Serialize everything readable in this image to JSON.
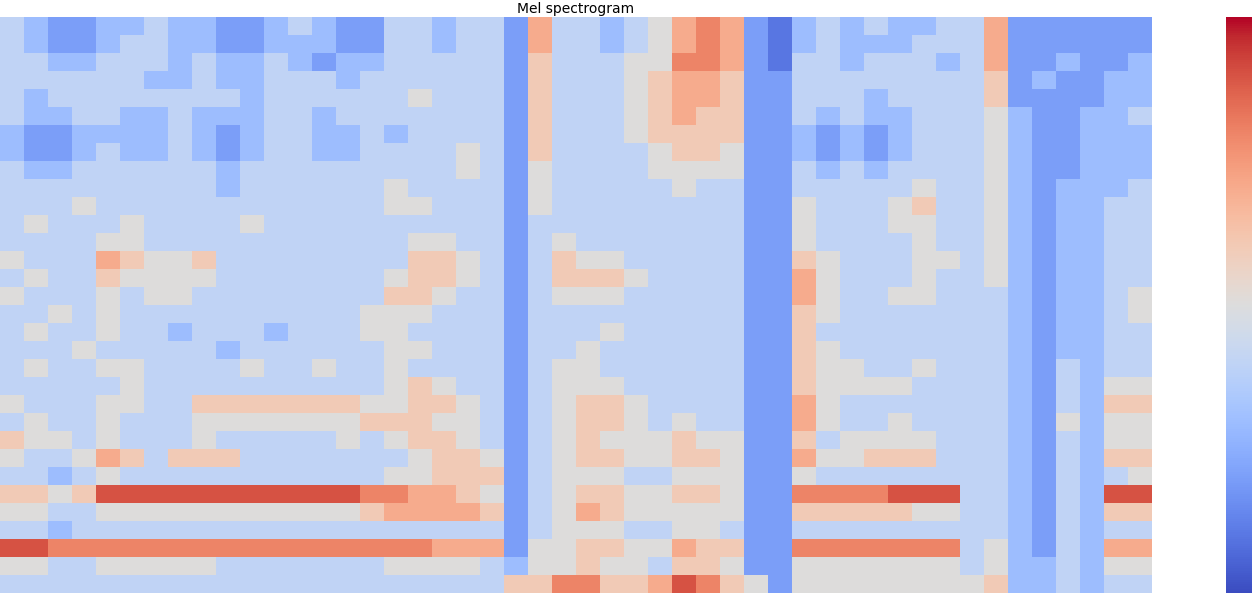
{
  "chart_data": {
    "type": "heatmap",
    "title": "Mel spectrogram",
    "color": "coolwarm",
    "tick_labels": false,
    "colorbar_range": [
      0,
      10
    ],
    "colorbar_ticks": [],
    "cells": [
      [
        4,
        3,
        2,
        2,
        3,
        3,
        4,
        3,
        3,
        2,
        2,
        3,
        4,
        3,
        2,
        2,
        4,
        4,
        3,
        4,
        4,
        2,
        7,
        4,
        4,
        3,
        4,
        5,
        7,
        8,
        7,
        2,
        1,
        3,
        4,
        3,
        4,
        3,
        3,
        4,
        4,
        7,
        2,
        2,
        2,
        2,
        2,
        2
      ],
      [
        4,
        3,
        2,
        2,
        3,
        4,
        4,
        3,
        3,
        2,
        2,
        3,
        3,
        3,
        2,
        2,
        4,
        4,
        3,
        4,
        4,
        2,
        7,
        4,
        4,
        3,
        4,
        5,
        7,
        8,
        7,
        2,
        1,
        3,
        4,
        3,
        3,
        3,
        4,
        4,
        4,
        7,
        2,
        2,
        2,
        2,
        2,
        2
      ],
      [
        4,
        4,
        3,
        3,
        4,
        4,
        4,
        3,
        4,
        3,
        3,
        4,
        3,
        2,
        3,
        3,
        4,
        4,
        4,
        4,
        4,
        2,
        6,
        4,
        4,
        4,
        5,
        5,
        8,
        8,
        7,
        2,
        1,
        4,
        4,
        3,
        4,
        4,
        4,
        3,
        4,
        7,
        2,
        2,
        3,
        2,
        2,
        3
      ],
      [
        4,
        4,
        4,
        4,
        4,
        4,
        3,
        3,
        4,
        3,
        3,
        4,
        4,
        4,
        3,
        4,
        4,
        4,
        4,
        4,
        4,
        2,
        6,
        4,
        4,
        4,
        5,
        6,
        7,
        7,
        6,
        2,
        2,
        4,
        4,
        4,
        4,
        4,
        4,
        4,
        4,
        6,
        2,
        3,
        2,
        2,
        3,
        3
      ],
      [
        4,
        3,
        4,
        4,
        4,
        4,
        4,
        4,
        4,
        4,
        3,
        4,
        4,
        4,
        4,
        4,
        4,
        5,
        4,
        4,
        4,
        2,
        6,
        4,
        4,
        4,
        5,
        6,
        7,
        7,
        6,
        2,
        2,
        4,
        4,
        4,
        3,
        4,
        4,
        4,
        4,
        6,
        2,
        2,
        2,
        2,
        3,
        3
      ],
      [
        4,
        3,
        3,
        4,
        4,
        3,
        3,
        4,
        3,
        3,
        3,
        4,
        4,
        3,
        4,
        4,
        4,
        4,
        4,
        4,
        4,
        2,
        6,
        4,
        4,
        4,
        5,
        6,
        7,
        6,
        6,
        2,
        2,
        4,
        3,
        4,
        3,
        3,
        4,
        4,
        4,
        5,
        3,
        2,
        2,
        3,
        3,
        4
      ],
      [
        3,
        2,
        2,
        3,
        3,
        3,
        3,
        4,
        3,
        2,
        3,
        4,
        4,
        3,
        3,
        4,
        3,
        4,
        4,
        4,
        4,
        2,
        6,
        4,
        4,
        4,
        5,
        6,
        6,
        6,
        6,
        2,
        2,
        3,
        2,
        3,
        2,
        3,
        4,
        4,
        4,
        5,
        3,
        2,
        2,
        3,
        3,
        3
      ],
      [
        3,
        2,
        2,
        3,
        4,
        3,
        3,
        4,
        3,
        2,
        3,
        4,
        4,
        3,
        3,
        4,
        4,
        4,
        4,
        5,
        4,
        2,
        6,
        4,
        4,
        4,
        4,
        5,
        6,
        6,
        5,
        2,
        2,
        3,
        2,
        3,
        2,
        3,
        4,
        4,
        4,
        5,
        3,
        2,
        2,
        3,
        3,
        3
      ],
      [
        4,
        3,
        3,
        4,
        4,
        4,
        4,
        4,
        4,
        3,
        4,
        4,
        4,
        4,
        4,
        4,
        4,
        4,
        4,
        5,
        4,
        2,
        5,
        4,
        4,
        4,
        4,
        5,
        5,
        5,
        5,
        2,
        2,
        4,
        3,
        4,
        3,
        4,
        4,
        4,
        4,
        5,
        3,
        2,
        2,
        3,
        3,
        3
      ],
      [
        4,
        4,
        4,
        4,
        4,
        4,
        4,
        4,
        4,
        3,
        4,
        4,
        4,
        4,
        4,
        4,
        5,
        4,
        4,
        4,
        4,
        2,
        5,
        4,
        4,
        4,
        4,
        4,
        5,
        4,
        4,
        2,
        2,
        4,
        4,
        4,
        4,
        4,
        5,
        4,
        4,
        5,
        3,
        2,
        3,
        3,
        3,
        4
      ],
      [
        4,
        4,
        4,
        5,
        4,
        4,
        4,
        4,
        4,
        4,
        4,
        4,
        4,
        4,
        4,
        4,
        5,
        5,
        4,
        4,
        4,
        2,
        5,
        4,
        4,
        4,
        4,
        4,
        4,
        4,
        4,
        2,
        2,
        5,
        4,
        4,
        4,
        5,
        6,
        4,
        4,
        5,
        3,
        2,
        3,
        3,
        4,
        4
      ],
      [
        4,
        5,
        4,
        4,
        4,
        5,
        4,
        4,
        4,
        4,
        5,
        4,
        4,
        4,
        4,
        4,
        4,
        4,
        4,
        4,
        4,
        2,
        4,
        4,
        4,
        4,
        4,
        4,
        4,
        4,
        4,
        2,
        2,
        5,
        4,
        4,
        4,
        5,
        5,
        4,
        4,
        5,
        3,
        2,
        3,
        3,
        4,
        4
      ],
      [
        4,
        4,
        4,
        4,
        5,
        5,
        4,
        4,
        4,
        4,
        4,
        4,
        4,
        4,
        4,
        4,
        4,
        5,
        5,
        4,
        4,
        2,
        4,
        5,
        4,
        4,
        4,
        4,
        4,
        4,
        4,
        2,
        2,
        5,
        4,
        4,
        4,
        4,
        5,
        4,
        4,
        5,
        3,
        2,
        3,
        3,
        4,
        4
      ],
      [
        5,
        4,
        4,
        4,
        7,
        6,
        5,
        5,
        6,
        4,
        4,
        4,
        4,
        4,
        4,
        4,
        4,
        6,
        6,
        5,
        4,
        2,
        4,
        6,
        5,
        5,
        4,
        4,
        4,
        4,
        4,
        2,
        2,
        6,
        5,
        4,
        4,
        4,
        5,
        5,
        4,
        5,
        3,
        2,
        3,
        3,
        4,
        4
      ],
      [
        4,
        5,
        4,
        4,
        6,
        5,
        5,
        5,
        5,
        4,
        4,
        4,
        4,
        4,
        4,
        4,
        5,
        6,
        6,
        5,
        4,
        2,
        4,
        6,
        6,
        6,
        5,
        4,
        4,
        4,
        4,
        2,
        2,
        7,
        5,
        4,
        4,
        4,
        5,
        4,
        4,
        5,
        3,
        2,
        3,
        3,
        4,
        4
      ],
      [
        5,
        4,
        4,
        4,
        5,
        4,
        5,
        5,
        4,
        4,
        4,
        4,
        4,
        4,
        4,
        4,
        6,
        6,
        5,
        4,
        4,
        2,
        4,
        5,
        5,
        5,
        4,
        4,
        4,
        4,
        4,
        2,
        2,
        7,
        5,
        4,
        4,
        5,
        5,
        4,
        4,
        4,
        3,
        2,
        3,
        3,
        4,
        5
      ],
      [
        4,
        4,
        5,
        4,
        5,
        4,
        4,
        4,
        4,
        4,
        4,
        4,
        4,
        4,
        4,
        5,
        5,
        5,
        4,
        4,
        4,
        2,
        4,
        4,
        4,
        4,
        4,
        4,
        4,
        4,
        4,
        2,
        2,
        6,
        5,
        4,
        4,
        4,
        4,
        4,
        4,
        4,
        3,
        2,
        3,
        3,
        4,
        5
      ],
      [
        4,
        5,
        4,
        4,
        5,
        4,
        4,
        3,
        4,
        4,
        4,
        3,
        4,
        4,
        4,
        5,
        5,
        4,
        4,
        4,
        4,
        2,
        4,
        4,
        4,
        5,
        4,
        4,
        4,
        4,
        4,
        2,
        2,
        6,
        4,
        4,
        4,
        4,
        4,
        4,
        4,
        4,
        3,
        2,
        3,
        3,
        4,
        4
      ],
      [
        4,
        4,
        4,
        5,
        4,
        4,
        4,
        4,
        4,
        3,
        4,
        4,
        4,
        4,
        4,
        4,
        5,
        5,
        4,
        4,
        4,
        2,
        4,
        4,
        5,
        4,
        4,
        4,
        4,
        4,
        4,
        2,
        2,
        6,
        5,
        4,
        4,
        4,
        4,
        4,
        4,
        4,
        3,
        2,
        3,
        3,
        4,
        4
      ],
      [
        4,
        5,
        4,
        4,
        5,
        5,
        4,
        4,
        4,
        4,
        5,
        4,
        4,
        5,
        4,
        4,
        5,
        4,
        4,
        4,
        4,
        2,
        4,
        5,
        5,
        4,
        4,
        4,
        4,
        4,
        4,
        2,
        2,
        6,
        5,
        5,
        4,
        4,
        5,
        4,
        4,
        4,
        3,
        2,
        4,
        3,
        4,
        4
      ],
      [
        4,
        4,
        4,
        4,
        4,
        5,
        4,
        4,
        4,
        4,
        4,
        4,
        4,
        4,
        4,
        4,
        5,
        6,
        5,
        4,
        4,
        2,
        4,
        5,
        5,
        5,
        4,
        4,
        4,
        4,
        4,
        2,
        2,
        6,
        5,
        5,
        5,
        5,
        4,
        4,
        4,
        4,
        3,
        2,
        4,
        3,
        5,
        5
      ],
      [
        5,
        4,
        4,
        4,
        5,
        5,
        4,
        4,
        6,
        6,
        6,
        6,
        6,
        6,
        6,
        5,
        5,
        6,
        6,
        5,
        4,
        2,
        4,
        5,
        6,
        6,
        5,
        4,
        4,
        4,
        4,
        2,
        2,
        7,
        5,
        4,
        4,
        4,
        4,
        4,
        4,
        4,
        3,
        2,
        4,
        3,
        6,
        6
      ],
      [
        4,
        5,
        4,
        4,
        5,
        4,
        4,
        4,
        5,
        5,
        5,
        5,
        5,
        5,
        5,
        6,
        6,
        6,
        5,
        5,
        4,
        2,
        4,
        5,
        6,
        6,
        5,
        4,
        5,
        4,
        4,
        2,
        2,
        7,
        5,
        4,
        4,
        5,
        4,
        4,
        4,
        4,
        3,
        2,
        5,
        3,
        5,
        5
      ],
      [
        6,
        5,
        5,
        4,
        5,
        4,
        4,
        4,
        5,
        4,
        4,
        4,
        4,
        4,
        5,
        4,
        5,
        6,
        6,
        5,
        4,
        2,
        4,
        5,
        6,
        5,
        5,
        5,
        6,
        5,
        5,
        2,
        2,
        6,
        4,
        5,
        5,
        5,
        5,
        4,
        4,
        4,
        3,
        2,
        4,
        3,
        5,
        5
      ],
      [
        5,
        4,
        4,
        5,
        7,
        6,
        4,
        6,
        6,
        6,
        4,
        4,
        4,
        4,
        4,
        4,
        4,
        5,
        6,
        6,
        5,
        2,
        4,
        5,
        6,
        6,
        5,
        5,
        6,
        6,
        5,
        2,
        2,
        7,
        5,
        5,
        6,
        6,
        6,
        4,
        4,
        4,
        3,
        2,
        4,
        3,
        6,
        6
      ],
      [
        4,
        4,
        3,
        4,
        5,
        4,
        4,
        4,
        4,
        4,
        4,
        4,
        4,
        4,
        4,
        4,
        5,
        5,
        6,
        6,
        6,
        2,
        4,
        5,
        5,
        5,
        4,
        4,
        5,
        5,
        5,
        2,
        2,
        5,
        4,
        4,
        4,
        4,
        4,
        4,
        4,
        4,
        3,
        2,
        4,
        3,
        4,
        5
      ],
      [
        6,
        6,
        5,
        6,
        9,
        9,
        9,
        9,
        9,
        9,
        9,
        9,
        9,
        9,
        9,
        8,
        8,
        7,
        7,
        6,
        5,
        2,
        4,
        5,
        6,
        6,
        5,
        5,
        6,
        6,
        5,
        2,
        2,
        8,
        8,
        8,
        8,
        9,
        9,
        9,
        4,
        4,
        3,
        2,
        4,
        3,
        9,
        9
      ],
      [
        5,
        5,
        4,
        4,
        5,
        5,
        5,
        5,
        5,
        5,
        5,
        5,
        5,
        5,
        5,
        6,
        7,
        7,
        7,
        7,
        6,
        2,
        4,
        5,
        7,
        6,
        5,
        5,
        5,
        5,
        5,
        2,
        2,
        6,
        6,
        6,
        6,
        6,
        5,
        5,
        4,
        4,
        3,
        2,
        4,
        3,
        6,
        6
      ],
      [
        4,
        4,
        3,
        4,
        4,
        4,
        4,
        4,
        4,
        4,
        4,
        4,
        4,
        4,
        4,
        4,
        4,
        4,
        4,
        4,
        4,
        2,
        4,
        5,
        5,
        5,
        4,
        4,
        5,
        5,
        4,
        2,
        2,
        4,
        4,
        4,
        4,
        4,
        4,
        4,
        4,
        4,
        3,
        2,
        4,
        3,
        4,
        4
      ],
      [
        9,
        9,
        8,
        8,
        8,
        8,
        8,
        8,
        8,
        8,
        8,
        8,
        8,
        8,
        8,
        8,
        8,
        8,
        7,
        7,
        7,
        2,
        5,
        5,
        6,
        6,
        5,
        5,
        7,
        6,
        6,
        2,
        2,
        8,
        8,
        8,
        8,
        8,
        8,
        8,
        4,
        5,
        3,
        2,
        4,
        3,
        7,
        7
      ],
      [
        5,
        5,
        4,
        4,
        5,
        5,
        5,
        5,
        5,
        4,
        4,
        4,
        4,
        4,
        4,
        4,
        5,
        5,
        5,
        5,
        4,
        3,
        5,
        5,
        6,
        5,
        5,
        4,
        6,
        6,
        5,
        2,
        2,
        5,
        5,
        5,
        5,
        5,
        5,
        5,
        4,
        5,
        3,
        3,
        4,
        3,
        5,
        5
      ],
      [
        4,
        4,
        4,
        4,
        4,
        4,
        4,
        4,
        4,
        4,
        4,
        4,
        4,
        4,
        4,
        4,
        4,
        4,
        4,
        4,
        4,
        6,
        6,
        8,
        8,
        6,
        6,
        7,
        9,
        8,
        6,
        5,
        2,
        5,
        5,
        5,
        5,
        5,
        5,
        5,
        5,
        6,
        3,
        3,
        4,
        3,
        4,
        4
      ]
    ]
  }
}
